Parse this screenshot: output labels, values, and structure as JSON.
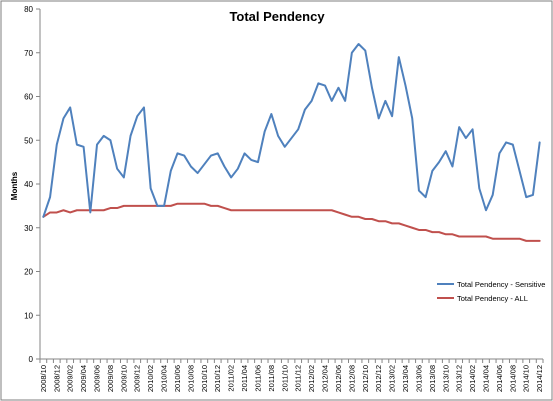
{
  "chart_data": {
    "type": "line",
    "title": "Total Pendency",
    "xlabel": "",
    "ylabel": "Months",
    "ylim": [
      0,
      80
    ],
    "yticks": [
      0,
      10,
      20,
      30,
      40,
      50,
      60,
      70,
      80
    ],
    "grid": false,
    "legend_position": "bottom-right",
    "x": [
      "2008/10",
      "2008/11",
      "2008/12",
      "2009/01",
      "2009/02",
      "2009/03",
      "2009/04",
      "2009/05",
      "2009/06",
      "2009/07",
      "2009/08",
      "2009/09",
      "2009/10",
      "2009/11",
      "2009/12",
      "2010/01",
      "2010/02",
      "2010/03",
      "2010/04",
      "2010/05",
      "2010/06",
      "2010/07",
      "2010/08",
      "2010/09",
      "2010/10",
      "2010/11",
      "2010/12",
      "2011/01",
      "2011/02",
      "2011/03",
      "2011/04",
      "2011/05",
      "2011/06",
      "2011/07",
      "2011/08",
      "2011/09",
      "2011/10",
      "2011/11",
      "2011/12",
      "2012/01",
      "2012/02",
      "2012/03",
      "2012/04",
      "2012/05",
      "2012/06",
      "2012/07",
      "2012/08",
      "2012/09",
      "2012/10",
      "2012/11",
      "2012/12",
      "2013/01",
      "2013/02",
      "2013/03",
      "2013/04",
      "2013/05",
      "2013/06",
      "2013/07",
      "2013/08",
      "2013/09",
      "2013/10",
      "2013/11",
      "2013/12",
      "2014/01",
      "2014/02",
      "2014/03",
      "2014/04",
      "2014/05",
      "2014/06",
      "2014/07",
      "2014/08",
      "2014/09",
      "2014/10",
      "2014/11",
      "2014/12"
    ],
    "xtick_labels": [
      "2008/10",
      "2008/12",
      "2009/02",
      "2009/04",
      "2009/06",
      "2009/08",
      "2009/10",
      "2009/12",
      "2010/02",
      "2010/04",
      "2010/06",
      "2010/08",
      "2010/10",
      "2010/12",
      "2011/02",
      "2011/04",
      "2011/06",
      "2011/08",
      "2011/10",
      "2011/12",
      "2012/02",
      "2012/04",
      "2012/06",
      "2012/08",
      "2012/10",
      "2012/12",
      "2013/02",
      "2013/04",
      "2013/06",
      "2013/08",
      "2013/10",
      "2013/12",
      "2014/02",
      "2014/04",
      "2014/06",
      "2014/08",
      "2014/10",
      "2014/12"
    ],
    "series": [
      {
        "name": "Total Pendency - Sensitive",
        "color": "#4f81bd",
        "values": [
          32.5,
          37,
          49,
          55,
          57.5,
          49,
          48.5,
          33.5,
          49,
          51,
          50,
          43.5,
          41.5,
          51,
          55.5,
          57.5,
          39,
          35,
          35,
          43,
          47,
          46.5,
          44,
          42.5,
          44.5,
          46.5,
          47,
          44,
          41.5,
          43.5,
          47,
          45.5,
          45,
          52,
          56,
          51,
          48.5,
          50.5,
          52.5,
          57,
          59,
          63,
          62.5,
          59,
          62,
          59,
          70,
          72,
          70.5,
          62,
          55,
          59,
          55.5,
          69,
          62.5,
          55,
          38.5,
          37,
          43,
          45,
          47.5,
          44,
          53,
          50.5,
          52.5,
          39,
          34,
          37.5,
          47,
          49.5,
          49,
          43,
          37,
          37.5,
          49.5
        ]
      },
      {
        "name": "Total Pendency - ALL",
        "color": "#c0504d",
        "values": [
          32.5,
          33.5,
          33.5,
          34,
          33.5,
          34,
          34,
          34,
          34,
          34,
          34.5,
          34.5,
          35,
          35,
          35,
          35,
          35,
          35,
          35,
          35,
          35.5,
          35.5,
          35.5,
          35.5,
          35.5,
          35,
          35,
          34.5,
          34,
          34,
          34,
          34,
          34,
          34,
          34,
          34,
          34,
          34,
          34,
          34,
          34,
          34,
          34,
          34,
          33.5,
          33,
          32.5,
          32.5,
          32,
          32,
          31.5,
          31.5,
          31,
          31,
          30.5,
          30,
          29.5,
          29.5,
          29,
          29,
          28.5,
          28.5,
          28,
          28,
          28,
          28,
          28,
          27.5,
          27.5,
          27.5,
          27.5,
          27.5,
          27,
          27,
          27
        ]
      }
    ]
  }
}
